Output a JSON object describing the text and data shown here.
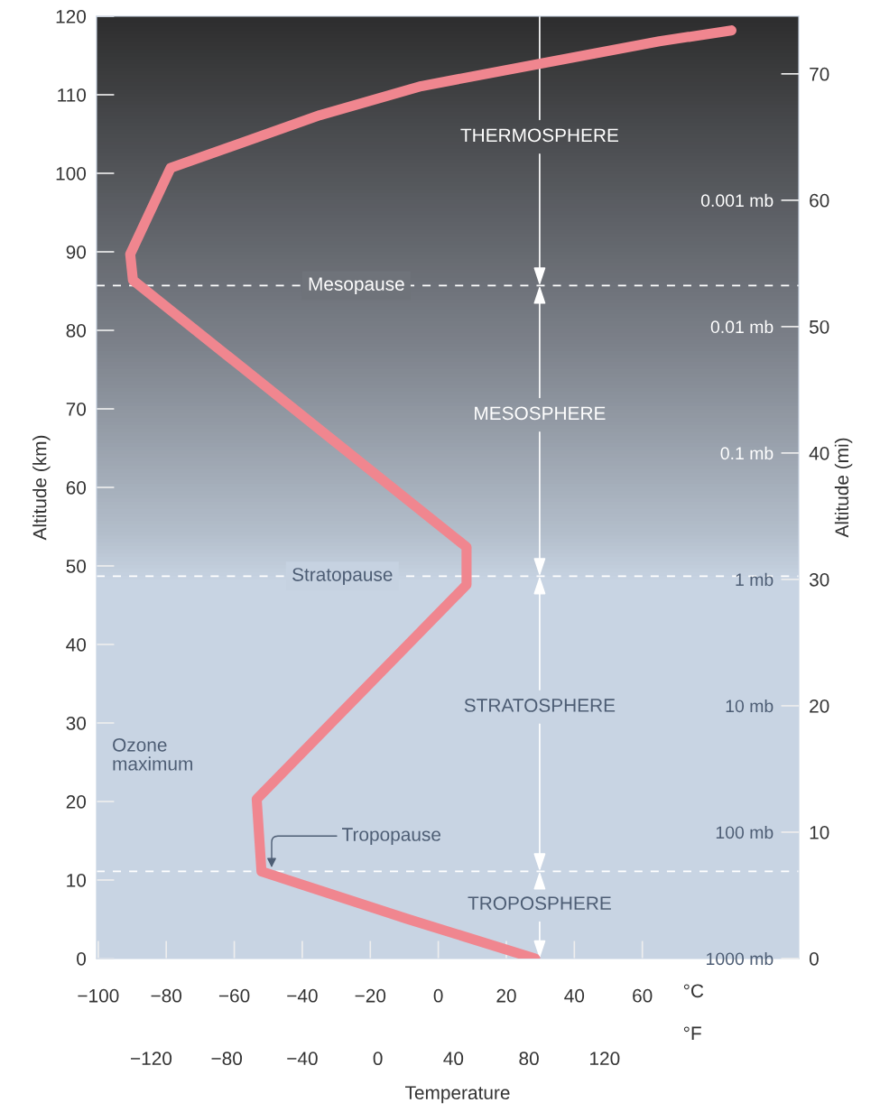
{
  "chart_data": {
    "type": "line",
    "xlabel": "°C",
    "ylabel": "Altitude (km)",
    "y2label": "Altitude (mi)",
    "x2label": "°F",
    "x": [
      28.5,
      -9.5,
      -52,
      -53.4,
      8.3,
      8.3,
      -89.8,
      -90.6,
      -78.7,
      -34.8,
      -5,
      30.4,
      65,
      86.2
    ],
    "series": [
      {
        "color": "#f0868f",
        "values": [
          0,
          5.1,
          11.1,
          20.3,
          47.6,
          52.4,
          86.4,
          89.7,
          100.7,
          107.4,
          111.1,
          114,
          116.8,
          118.2
        ]
      }
    ],
    "xlim": [
      -100.5,
      106
    ],
    "xticks": [
      -100,
      -80,
      -60,
      -40,
      -20,
      0,
      20,
      40,
      60
    ],
    "x2lim": [
      -148.9,
      222.8
    ],
    "x2ticks": [
      -120,
      -80,
      -40,
      0,
      40,
      80,
      120
    ],
    "ylim": [
      0,
      120
    ],
    "yticks": [
      0,
      10,
      20,
      30,
      40,
      50,
      60,
      70,
      80,
      90,
      100,
      110,
      120
    ],
    "y2lim": [
      0,
      74.56
    ],
    "y2ticks": [
      0,
      10,
      20,
      30,
      40,
      50,
      60,
      70
    ],
    "log": "y3",
    "y3lim": [
      1000,
      3.5e-05
    ],
    "y3ticks": [
      {
        "value": 1000,
        "label": "1000 mb"
      },
      {
        "value": 100,
        "label": "100 mb"
      },
      {
        "value": 10,
        "label": "10 mb"
      },
      {
        "value": 1,
        "label": "1 mb"
      },
      {
        "value": 0.1,
        "label": "0.1 mb"
      },
      {
        "value": 0.01,
        "label": "0.01 mb"
      },
      {
        "value": 0.001,
        "label": "0.001 mb"
      }
    ],
    "ref_lines": [
      {
        "axis": "y",
        "value": 85.7,
        "label": "Mesopause",
        "color": "#ffffff",
        "line_style": "dashed"
      },
      {
        "axis": "y",
        "value": 48.7,
        "label": "Stratopause",
        "color": "#ffffff",
        "line_style": "dashed"
      },
      {
        "axis": "y",
        "value": 11.1,
        "label": "Tropopause",
        "color": "#ffffff",
        "line_style": "dashed"
      }
    ],
    "annotations": [
      {
        "text": "THERMOSPHERE",
        "y": 85.7
      },
      {
        "text": "MESOSPHERE",
        "y": 48.7
      },
      {
        "text": "STRATOSPHERE",
        "y": 11.1
      },
      {
        "text": "TROPOSPHERE",
        "y": 0
      },
      "Ozone\nmaximum",
      "Temperature"
    ],
    "grid": false,
    "legend": false
  }
}
